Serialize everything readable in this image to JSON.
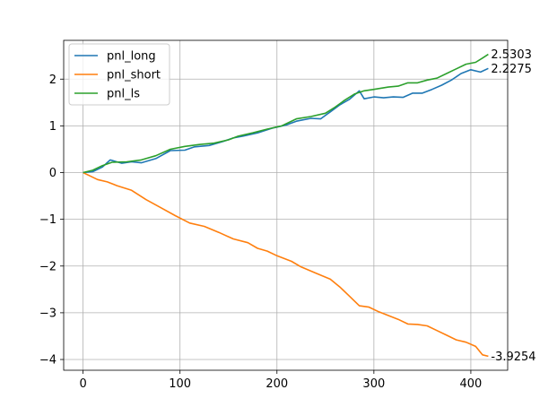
{
  "chart_data": {
    "type": "line",
    "title": "",
    "xlabel": "",
    "ylabel": "",
    "xlim": [
      -20,
      438
    ],
    "ylim": [
      -4.23,
      2.83
    ],
    "x_ticks": [
      0,
      100,
      200,
      300,
      400
    ],
    "x_tick_labels": [
      "0",
      "100",
      "200",
      "300",
      "400"
    ],
    "y_ticks": [
      -4,
      -3,
      -2,
      -1,
      0,
      1,
      2
    ],
    "y_tick_labels": [
      "−4",
      "−3",
      "−2",
      "−1",
      "0",
      "1",
      "2"
    ],
    "grid": true,
    "legend_position": "top-left",
    "series": [
      {
        "name": "pnl_long",
        "color": "#1f77b4",
        "end_label": "2.2275",
        "points": [
          [
            0,
            0
          ],
          [
            10,
            0.02
          ],
          [
            20,
            0.12
          ],
          [
            28,
            0.27
          ],
          [
            40,
            0.2
          ],
          [
            50,
            0.23
          ],
          [
            60,
            0.21
          ],
          [
            75,
            0.3
          ],
          [
            90,
            0.47
          ],
          [
            105,
            0.48
          ],
          [
            115,
            0.55
          ],
          [
            130,
            0.58
          ],
          [
            145,
            0.67
          ],
          [
            155,
            0.74
          ],
          [
            165,
            0.78
          ],
          [
            180,
            0.85
          ],
          [
            195,
            0.95
          ],
          [
            210,
            1.02
          ],
          [
            220,
            1.1
          ],
          [
            235,
            1.16
          ],
          [
            245,
            1.15
          ],
          [
            255,
            1.3
          ],
          [
            265,
            1.45
          ],
          [
            275,
            1.57
          ],
          [
            285,
            1.75
          ],
          [
            290,
            1.58
          ],
          [
            300,
            1.62
          ],
          [
            310,
            1.6
          ],
          [
            320,
            1.62
          ],
          [
            330,
            1.61
          ],
          [
            340,
            1.7
          ],
          [
            350,
            1.7
          ],
          [
            360,
            1.78
          ],
          [
            370,
            1.87
          ],
          [
            380,
            1.98
          ],
          [
            390,
            2.12
          ],
          [
            400,
            2.2
          ],
          [
            410,
            2.15
          ],
          [
            418,
            2.23
          ]
        ]
      },
      {
        "name": "pnl_short",
        "color": "#ff7f0e",
        "end_label": "-3.9254",
        "points": [
          [
            0,
            0
          ],
          [
            8,
            -0.08
          ],
          [
            15,
            -0.15
          ],
          [
            25,
            -0.2
          ],
          [
            35,
            -0.28
          ],
          [
            50,
            -0.38
          ],
          [
            65,
            -0.58
          ],
          [
            80,
            -0.75
          ],
          [
            95,
            -0.92
          ],
          [
            110,
            -1.08
          ],
          [
            125,
            -1.15
          ],
          [
            140,
            -1.28
          ],
          [
            155,
            -1.42
          ],
          [
            170,
            -1.5
          ],
          [
            180,
            -1.62
          ],
          [
            190,
            -1.68
          ],
          [
            200,
            -1.78
          ],
          [
            215,
            -1.9
          ],
          [
            225,
            -2.02
          ],
          [
            240,
            -2.15
          ],
          [
            255,
            -2.28
          ],
          [
            265,
            -2.45
          ],
          [
            275,
            -2.65
          ],
          [
            285,
            -2.85
          ],
          [
            295,
            -2.88
          ],
          [
            305,
            -2.98
          ],
          [
            315,
            -3.06
          ],
          [
            325,
            -3.14
          ],
          [
            335,
            -3.24
          ],
          [
            345,
            -3.25
          ],
          [
            355,
            -3.28
          ],
          [
            365,
            -3.38
          ],
          [
            375,
            -3.48
          ],
          [
            385,
            -3.58
          ],
          [
            395,
            -3.63
          ],
          [
            405,
            -3.72
          ],
          [
            412,
            -3.9
          ],
          [
            418,
            -3.93
          ]
        ]
      },
      {
        "name": "pnl_ls",
        "color": "#2ca02c",
        "end_label": "2.5303",
        "points": [
          [
            0,
            0
          ],
          [
            10,
            0.05
          ],
          [
            20,
            0.15
          ],
          [
            30,
            0.22
          ],
          [
            45,
            0.23
          ],
          [
            60,
            0.27
          ],
          [
            75,
            0.36
          ],
          [
            90,
            0.5
          ],
          [
            105,
            0.56
          ],
          [
            120,
            0.6
          ],
          [
            135,
            0.63
          ],
          [
            150,
            0.7
          ],
          [
            160,
            0.78
          ],
          [
            175,
            0.85
          ],
          [
            190,
            0.93
          ],
          [
            205,
            1.0
          ],
          [
            220,
            1.15
          ],
          [
            235,
            1.2
          ],
          [
            250,
            1.27
          ],
          [
            260,
            1.4
          ],
          [
            270,
            1.55
          ],
          [
            280,
            1.68
          ],
          [
            290,
            1.75
          ],
          [
            300,
            1.78
          ],
          [
            315,
            1.83
          ],
          [
            325,
            1.85
          ],
          [
            335,
            1.92
          ],
          [
            345,
            1.92
          ],
          [
            355,
            1.98
          ],
          [
            365,
            2.02
          ],
          [
            375,
            2.12
          ],
          [
            385,
            2.22
          ],
          [
            395,
            2.32
          ],
          [
            405,
            2.36
          ],
          [
            412,
            2.45
          ],
          [
            418,
            2.53
          ]
        ]
      }
    ]
  }
}
